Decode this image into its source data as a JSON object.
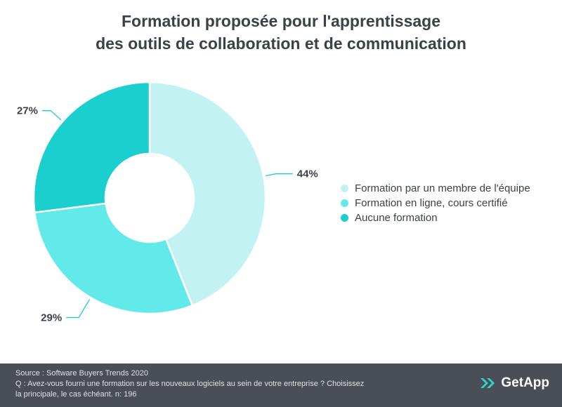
{
  "title": {
    "line1": "Formation proposée pour l'apprentissage",
    "line2": "des outils de collaboration et de communication"
  },
  "chart_data": {
    "type": "pie",
    "variant": "donut",
    "title": "Formation proposée pour l'apprentissage des outils de collaboration et de communication",
    "categories": [
      "Formation par un membre de l'équipe",
      "Formation en ligne, cours certifié",
      "Aucune formation"
    ],
    "values": [
      44,
      29,
      27
    ],
    "labels": [
      "44%",
      "29%",
      "27%"
    ],
    "colors": [
      "#c2f3f2",
      "#62e9e9",
      "#1acfce"
    ],
    "legend_position": "right"
  },
  "footer": {
    "source": "Source : Software Buyers Trends 2020",
    "question_line1": "Q : Avez-vous fourni une formation sur les nouveaux logiciels au sein de votre entreprise ? Choisissez",
    "question_line2": "la principale, le cas échéant. n: 196",
    "background": "#4a4e56"
  },
  "logo": {
    "text": "GetApp",
    "icon": "getapp-chevrons-icon",
    "color": "#2ed3c9"
  }
}
